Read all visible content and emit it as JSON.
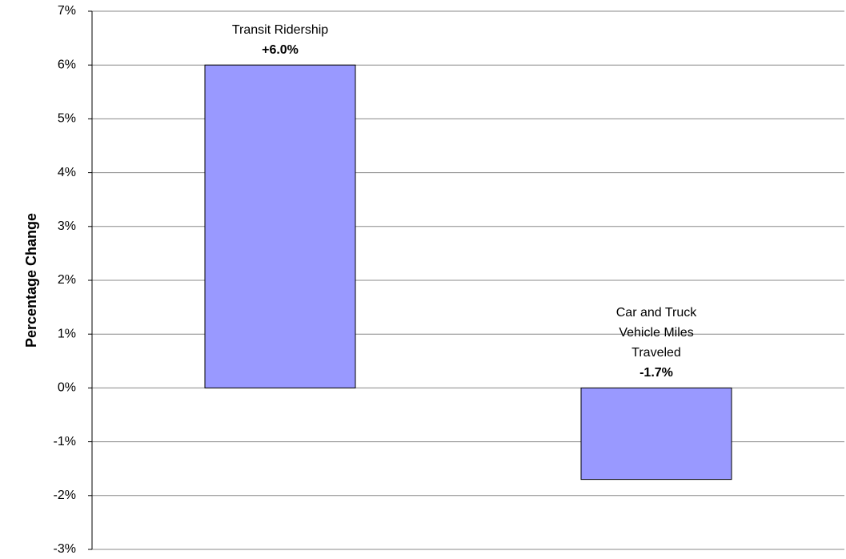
{
  "chart_data": {
    "type": "bar",
    "y_label": "Percentage Change",
    "categories": [
      "Transit Ridership",
      "Car and Truck Vehicle Miles Traveled"
    ],
    "values": [
      6.0,
      -1.7
    ],
    "value_labels": [
      "+6.0%",
      "-1.7%"
    ],
    "color": "#9999ff",
    "ylim": [
      -3,
      7
    ],
    "yticks": [
      {
        "value": -3,
        "label": "-3%"
      },
      {
        "value": -2,
        "label": "-2%"
      },
      {
        "value": -1,
        "label": "-1%"
      },
      {
        "value": 0,
        "label": "0%"
      },
      {
        "value": 1,
        "label": "1%"
      },
      {
        "value": 2,
        "label": "2%"
      },
      {
        "value": 3,
        "label": "3%"
      },
      {
        "value": 4,
        "label": "4%"
      },
      {
        "value": 5,
        "label": "5%"
      },
      {
        "value": 6,
        "label": "6%"
      },
      {
        "value": 7,
        "label": "7%"
      }
    ],
    "grid": true
  }
}
